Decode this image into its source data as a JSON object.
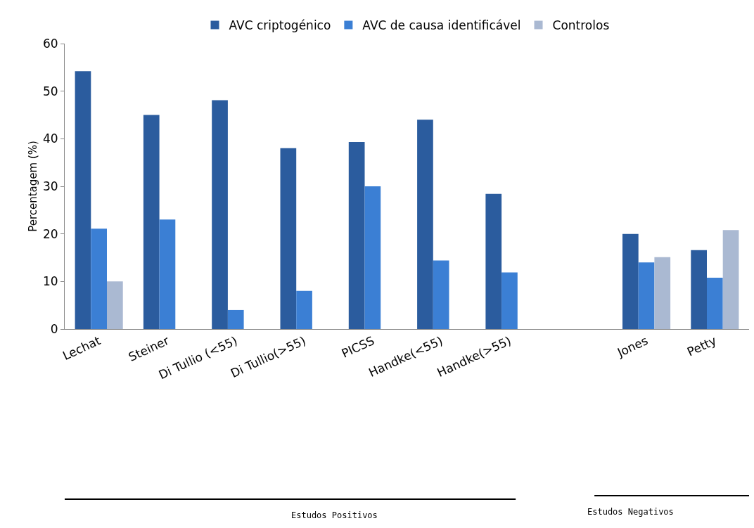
{
  "chart_data": {
    "type": "bar",
    "ylabel": "Percentagem (%)",
    "categories": [
      "Lechat",
      "Steiner",
      "Di Tullio (<55)",
      "Di Tullio(>55)",
      "PICSS",
      "Handke(<55)",
      "Handke(>55)",
      null,
      "Jones",
      "Petty"
    ],
    "series": [
      {
        "name": "AVC criptogénico",
        "color": "#2b5c9e",
        "values": [
          54.2,
          45,
          48.1,
          38,
          39.3,
          44,
          28.4,
          null,
          20,
          16.6
        ]
      },
      {
        "name": "AVC de causa identificável",
        "color": "#3b7fd4",
        "values": [
          21.1,
          23,
          4,
          8,
          30,
          14.4,
          11.9,
          null,
          14,
          10.8
        ]
      },
      {
        "name": "Controlos",
        "color": "#aab9d2",
        "values": [
          10,
          null,
          null,
          null,
          null,
          null,
          null,
          null,
          15.1,
          20.8
        ]
      }
    ],
    "ylim": [
      0,
      60
    ],
    "yticks": [
      0,
      10,
      20,
      30,
      40,
      50,
      60
    ],
    "grid": false,
    "legend": "top",
    "annotations": [
      "Estudos Positivos",
      "Estudos Negativos"
    ]
  }
}
